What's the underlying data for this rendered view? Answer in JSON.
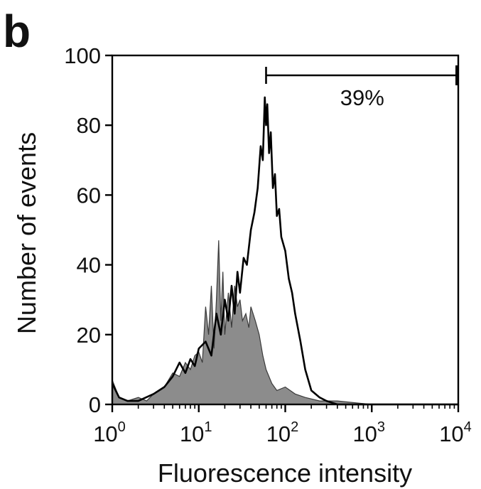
{
  "panel_label": "b",
  "chart_data": {
    "type": "area",
    "title": "",
    "xlabel": "Fluorescence intensity",
    "ylabel": "Number of events",
    "x_scale": "log",
    "xlim": [
      1,
      10000
    ],
    "ylim": [
      0,
      100
    ],
    "x_ticks": [
      {
        "base": "10",
        "exp": "0",
        "value": 1
      },
      {
        "base": "10",
        "exp": "1",
        "value": 10
      },
      {
        "base": "10",
        "exp": "2",
        "value": 100
      },
      {
        "base": "10",
        "exp": "3",
        "value": 1000
      },
      {
        "base": "10",
        "exp": "4",
        "value": 10000
      }
    ],
    "y_ticks": [
      "0",
      "20",
      "40",
      "60",
      "80",
      "100"
    ],
    "grid": false,
    "gate": {
      "from": 60,
      "to": 10000,
      "label": "39%"
    },
    "series": [
      {
        "style": "filled-gray",
        "color": "#8c8c8c",
        "x": [
          1,
          1.2,
          1.5,
          2,
          2.5,
          3,
          4,
          5,
          6,
          7,
          8,
          9,
          10,
          11,
          12,
          13,
          14,
          15,
          16,
          17,
          18,
          19,
          20,
          22,
          24,
          26,
          28,
          30,
          32,
          35,
          38,
          40,
          45,
          50,
          55,
          60,
          70,
          80,
          100,
          130,
          170,
          250,
          400,
          1000,
          10000
        ],
        "values": [
          7,
          2,
          1,
          2,
          1,
          3,
          5,
          9,
          8,
          12,
          10,
          14,
          15,
          12,
          28,
          20,
          34,
          16,
          30,
          47,
          24,
          38,
          20,
          32,
          22,
          34,
          28,
          30,
          24,
          26,
          22,
          28,
          24,
          20,
          14,
          10,
          6,
          4,
          5,
          3,
          2,
          1,
          1,
          0,
          0
        ]
      },
      {
        "style": "line-black",
        "color": "#000000",
        "x": [
          1,
          1.2,
          1.5,
          2,
          3,
          4,
          5,
          6,
          7,
          8,
          9,
          10,
          12,
          14,
          16,
          18,
          20,
          22,
          24,
          26,
          28,
          30,
          33,
          36,
          40,
          44,
          48,
          52,
          55,
          58,
          60,
          62,
          65,
          68,
          72,
          76,
          80,
          85,
          90,
          100,
          110,
          120,
          130,
          150,
          170,
          200,
          250,
          300,
          400,
          1000,
          10000
        ],
        "values": [
          6,
          2,
          1,
          1,
          3,
          5,
          8,
          12,
          9,
          13,
          11,
          16,
          18,
          14,
          26,
          20,
          30,
          24,
          34,
          26,
          38,
          32,
          42,
          40,
          50,
          55,
          62,
          74,
          70,
          88,
          80,
          86,
          72,
          78,
          62,
          66,
          54,
          56,
          48,
          44,
          36,
          32,
          26,
          18,
          10,
          4,
          2,
          1,
          0,
          0,
          0
        ]
      }
    ]
  }
}
